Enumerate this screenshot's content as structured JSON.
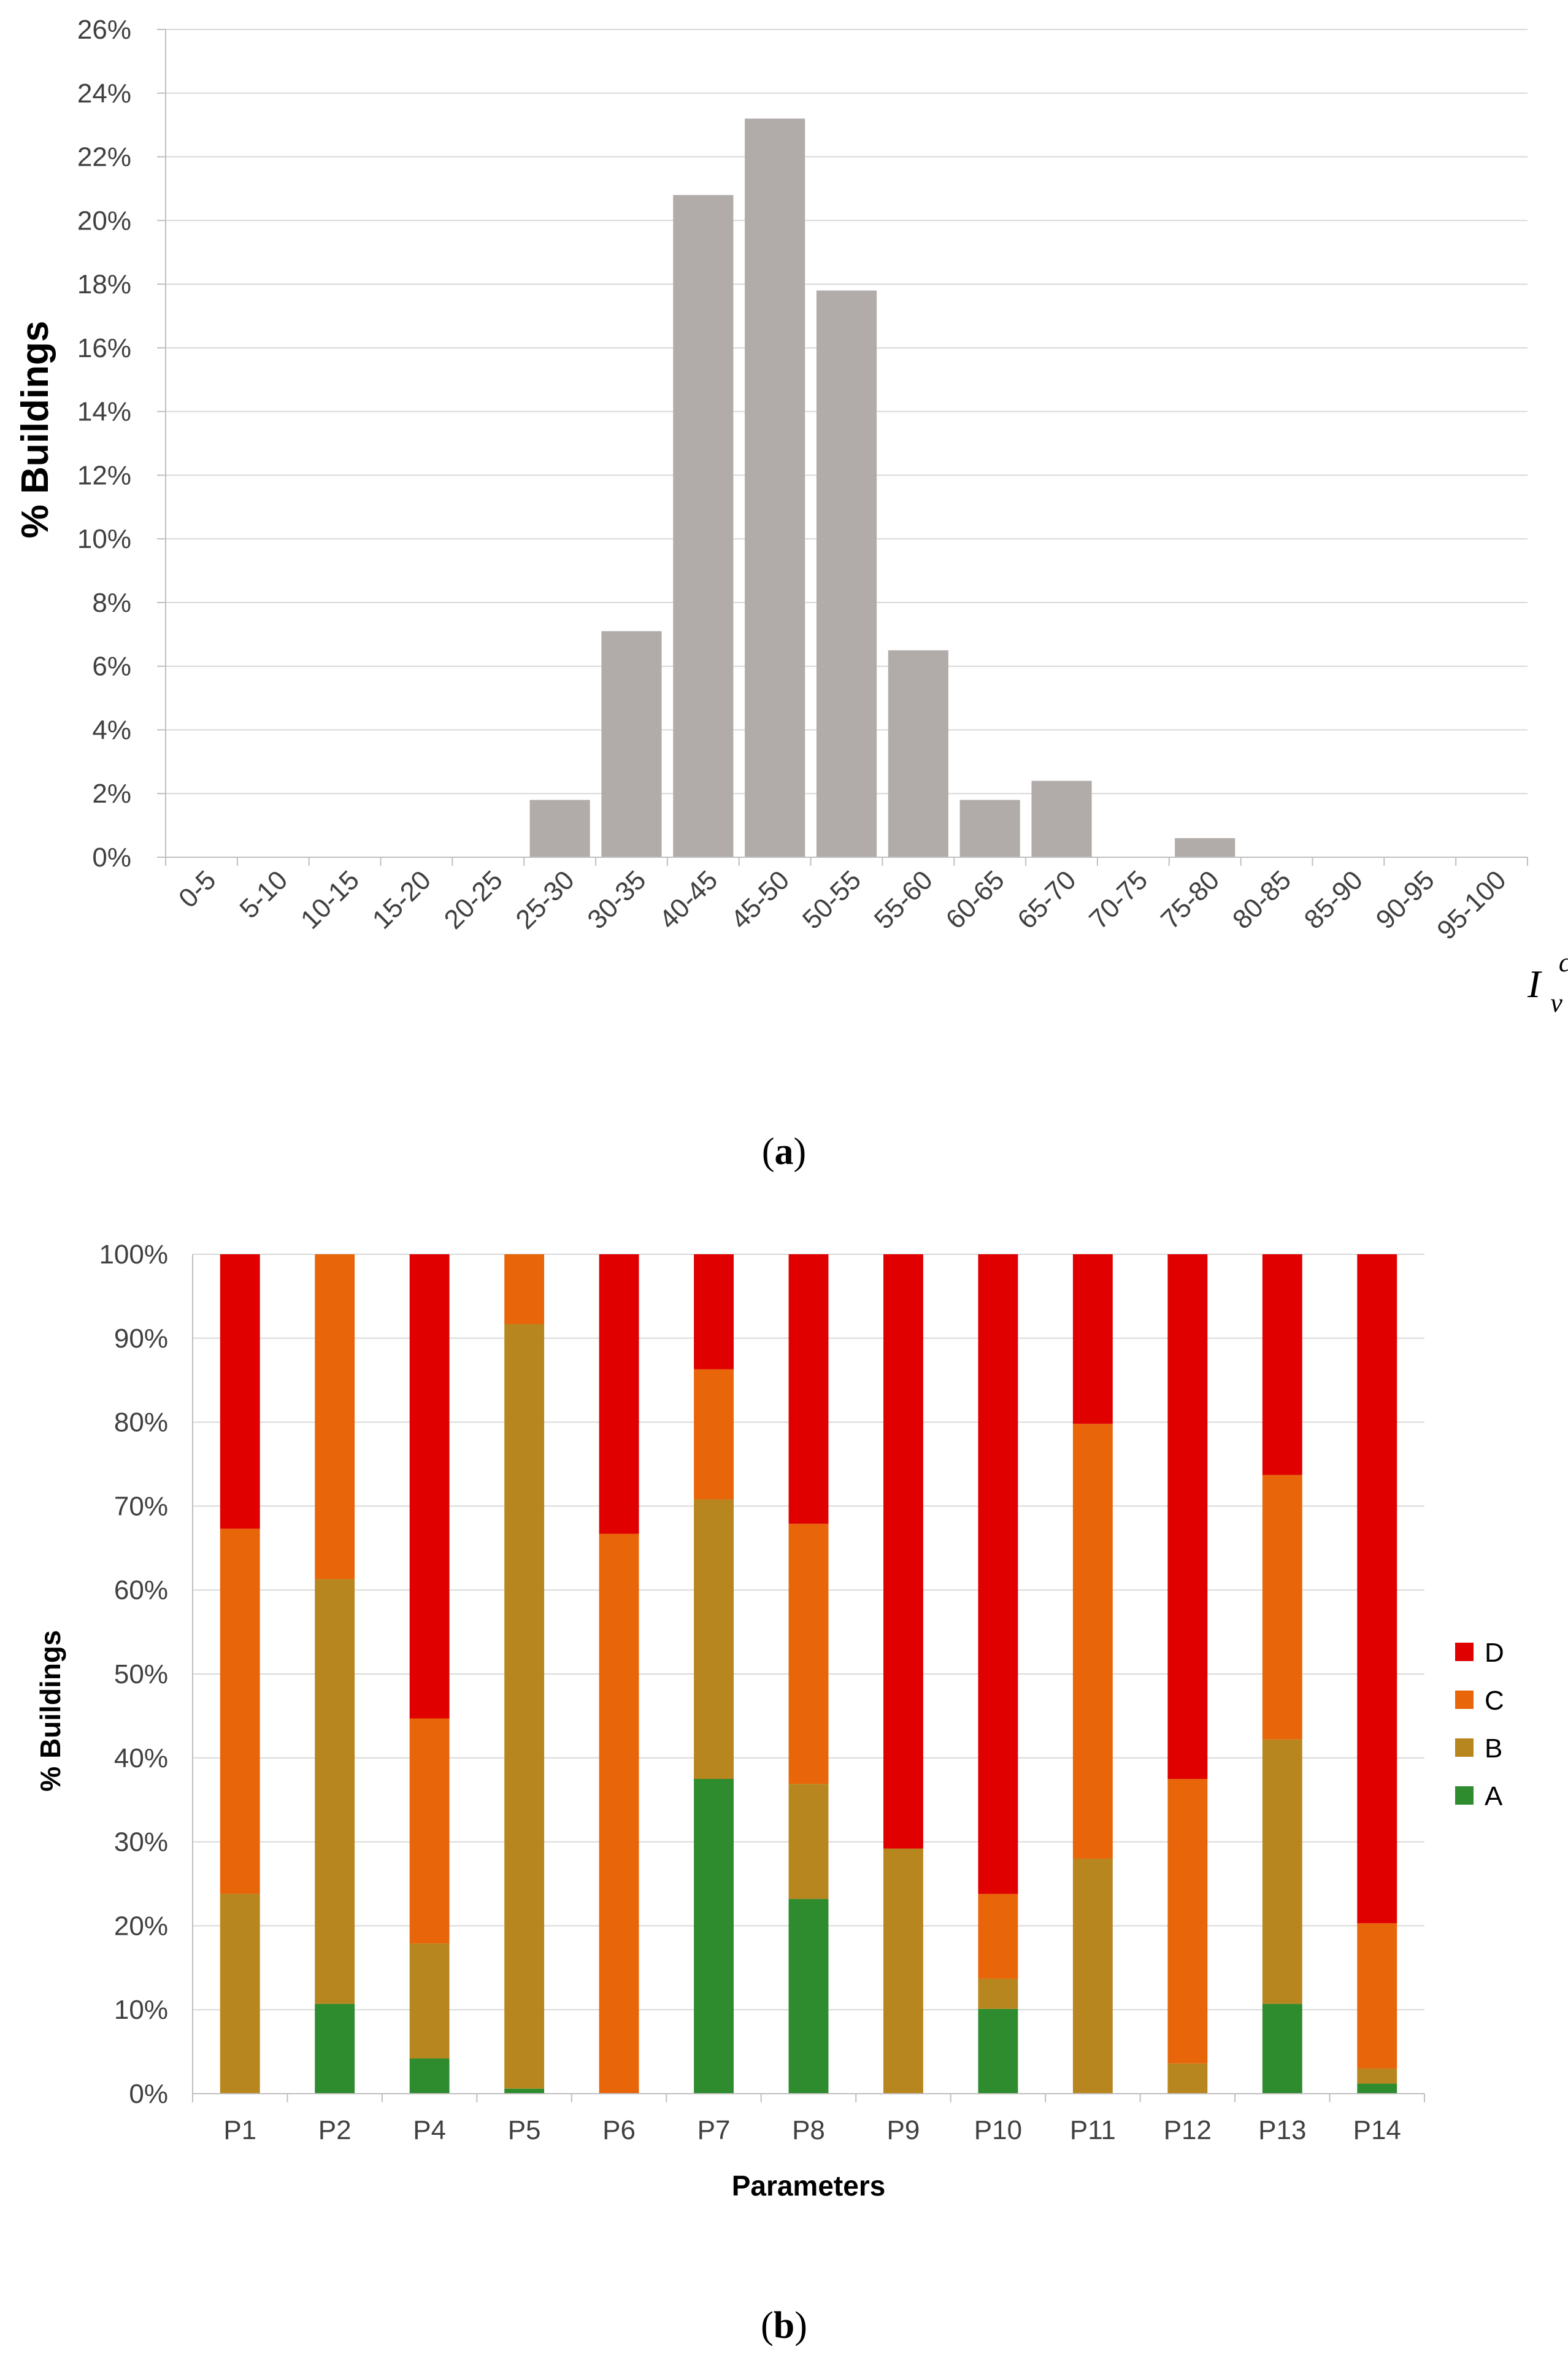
{
  "chart_data": [
    {
      "id": "a",
      "type": "bar",
      "caption_letter": "a",
      "title": "",
      "ylabel": "% Buildings",
      "xlabel": {
        "main": "I",
        "sub": "v",
        "sup": "cc"
      },
      "ylim": [
        0,
        26
      ],
      "yticks": [
        "0%",
        "2%",
        "4%",
        "6%",
        "8%",
        "10%",
        "12%",
        "14%",
        "16%",
        "18%",
        "20%",
        "22%",
        "24%",
        "26%"
      ],
      "categories": [
        "0-5",
        "5-10",
        "10-15",
        "15-20",
        "20-25",
        "25-30",
        "30-35",
        "40-45",
        "45-50",
        "50-55",
        "55-60",
        "60-65",
        "65-70",
        "70-75",
        "75-80",
        "80-85",
        "85-90",
        "90-95",
        "95-100"
      ],
      "values": [
        0,
        0,
        0,
        0,
        0,
        1.8,
        7.1,
        20.8,
        23.2,
        17.8,
        6.5,
        1.8,
        2.4,
        0,
        0.6,
        0,
        0,
        0,
        0
      ],
      "colors": {
        "bar": "#b1aca9",
        "grid": "#d9d9d9",
        "axis": "#bfbfbf"
      }
    },
    {
      "id": "b",
      "type": "bar",
      "stacked": true,
      "caption_letter": "b",
      "title": "",
      "ylabel": "% Buildings",
      "xlabel": "Parameters",
      "ylim": [
        0,
        100
      ],
      "yticks": [
        "0%",
        "10%",
        "20%",
        "30%",
        "40%",
        "50%",
        "60%",
        "70%",
        "80%",
        "90%",
        "100%"
      ],
      "categories": [
        "P1",
        "P2",
        "P4",
        "P5",
        "P6",
        "P7",
        "P8",
        "P9",
        "P10",
        "P11",
        "P12",
        "P13",
        "P14"
      ],
      "series": [
        {
          "name": "A",
          "color": "#2e8b2e",
          "values": [
            0,
            10.7,
            4.2,
            0.6,
            0,
            37.5,
            23.2,
            0,
            10.1,
            0,
            0,
            10.7,
            1.2
          ]
        },
        {
          "name": "B",
          "color": "#b8861e",
          "values": [
            23.8,
            50.6,
            13.7,
            91.1,
            0,
            33.3,
            13.7,
            29.2,
            3.6,
            28.0,
            3.6,
            31.5,
            1.8
          ]
        },
        {
          "name": "C",
          "color": "#e8650a",
          "values": [
            43.5,
            38.7,
            26.8,
            8.3,
            66.7,
            15.5,
            31.0,
            0,
            10.1,
            51.8,
            33.9,
            31.5,
            17.3
          ]
        },
        {
          "name": "D",
          "color": "#e00000",
          "values": [
            32.7,
            0,
            55.3,
            0,
            33.3,
            13.7,
            32.1,
            70.8,
            76.2,
            20.2,
            62.5,
            26.3,
            79.7
          ]
        }
      ],
      "legend_order": [
        "D",
        "C",
        "B",
        "A"
      ],
      "legend_position": "right",
      "colors": {
        "grid": "#d9d9d9",
        "axis": "#bfbfbf"
      }
    }
  ]
}
